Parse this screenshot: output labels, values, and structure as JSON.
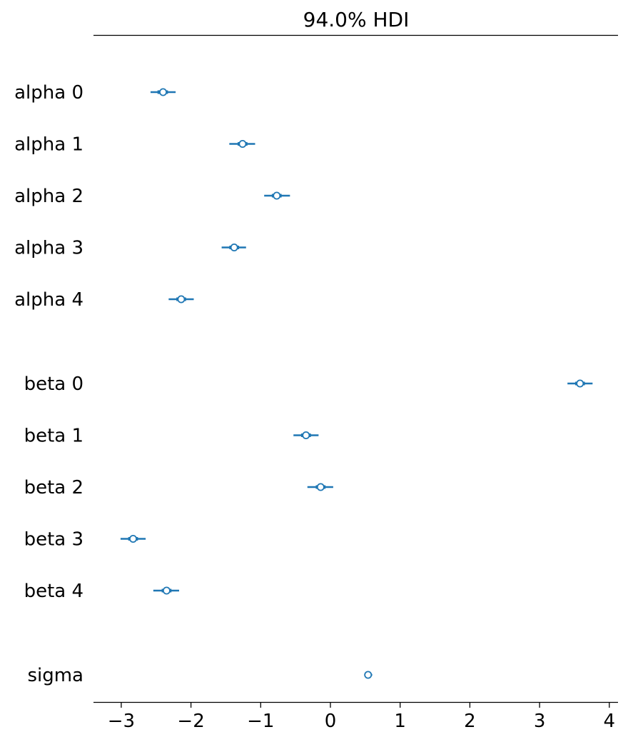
{
  "chart_data": {
    "type": "forest",
    "title": "94.0% HDI",
    "xlim": [
      -3.4,
      4.1
    ],
    "xticks": [
      -3,
      -2,
      -1,
      0,
      1,
      2,
      3,
      4
    ],
    "xtick_labels": [
      "−3",
      "−2",
      "−1",
      "0",
      "1",
      "2",
      "3",
      "4"
    ],
    "series_color": "#1f77b4",
    "groups": [
      {
        "rows": [
          {
            "label": "alpha 0",
            "mean": -2.4,
            "iqr": [
              -2.48,
              -2.33
            ],
            "hdi": [
              -2.58,
              -2.22
            ]
          },
          {
            "label": "alpha 1",
            "mean": -1.26,
            "iqr": [
              -1.33,
              -1.19
            ],
            "hdi": [
              -1.45,
              -1.08
            ]
          },
          {
            "label": "alpha 2",
            "mean": -0.77,
            "iqr": [
              -0.84,
              -0.7
            ],
            "hdi": [
              -0.95,
              -0.58
            ]
          },
          {
            "label": "alpha 3",
            "mean": -1.38,
            "iqr": [
              -1.45,
              -1.31
            ],
            "hdi": [
              -1.56,
              -1.21
            ]
          },
          {
            "label": "alpha 4",
            "mean": -2.14,
            "iqr": [
              -2.21,
              -2.07
            ],
            "hdi": [
              -2.32,
              -1.96
            ]
          }
        ]
      },
      {
        "rows": [
          {
            "label": "beta 0",
            "mean": 3.58,
            "iqr": [
              3.51,
              3.65
            ],
            "hdi": [
              3.4,
              3.76
            ]
          },
          {
            "label": "beta 1",
            "mean": -0.35,
            "iqr": [
              -0.42,
              -0.28
            ],
            "hdi": [
              -0.53,
              -0.17
            ]
          },
          {
            "label": "beta 2",
            "mean": -0.14,
            "iqr": [
              -0.21,
              -0.07
            ],
            "hdi": [
              -0.33,
              0.04
            ]
          },
          {
            "label": "beta 3",
            "mean": -2.83,
            "iqr": [
              -2.9,
              -2.76
            ],
            "hdi": [
              -3.01,
              -2.65
            ]
          },
          {
            "label": "beta 4",
            "mean": -2.35,
            "iqr": [
              -2.42,
              -2.28
            ],
            "hdi": [
              -2.54,
              -2.17
            ]
          }
        ]
      },
      {
        "rows": [
          {
            "label": "sigma",
            "mean": 0.54,
            "iqr": [
              0.52,
              0.57
            ],
            "hdi": [
              0.5,
              0.6
            ]
          }
        ]
      }
    ]
  }
}
